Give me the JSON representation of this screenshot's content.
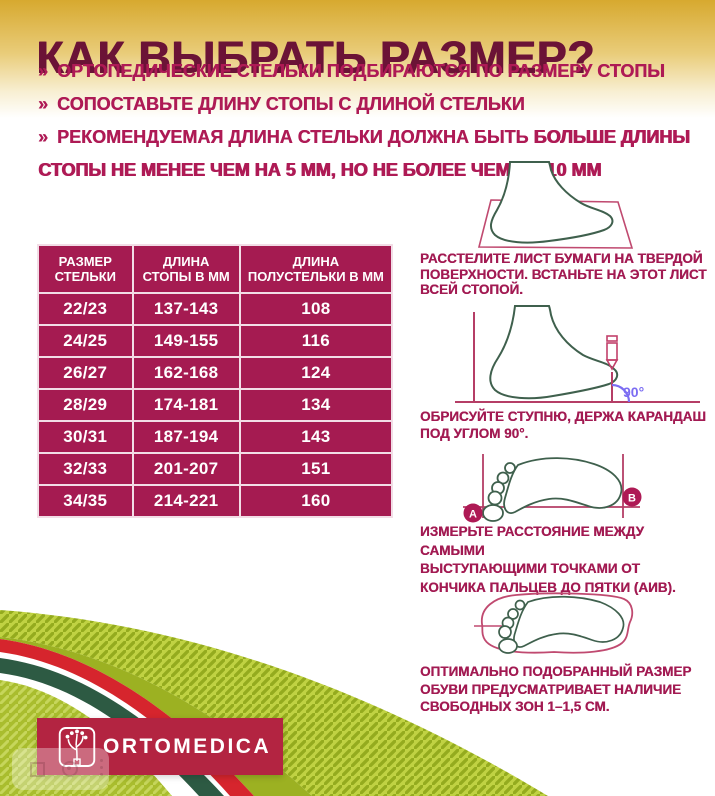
{
  "page": {
    "title": "КАК ВЫБРАТЬ РАЗМЕР?"
  },
  "bullets": [
    {
      "marker": "»",
      "text": "ОРТОПЕДИЧЕСКИЕ СТЕЛЬКИ ПОДБИРАЮТСЯ ПО РАЗМЕРУ СТОПЫ",
      "bold_text": ""
    },
    {
      "marker": "»",
      "text": "СОПОСТАВЬТЕ ДЛИНУ СТОПЫ С ДЛИНОЙ СТЕЛЬКИ",
      "bold_text": ""
    },
    {
      "marker": "»",
      "text": "РЕКОМЕНДУЕМАЯ ДЛИНА СТЕЛЬКИ ДОЛЖНА БЫТЬ ",
      "bold_text": "БОЛЬШЕ ДЛИНЫ СТОПЫ НЕ МЕНЕЕ ЧЕМ НА 5 ММ, НО НЕ БОЛЕЕ ЧЕМ НА 10 ММ"
    }
  ],
  "size_table": {
    "headers": [
      "РАЗМЕР СТЕЛЬКИ",
      "ДЛИНА СТОПЫ В ММ",
      "ДЛИНА ПОЛУСТЕЛЬКИ В ММ"
    ],
    "rows": [
      [
        "22/23",
        "137-143",
        "108"
      ],
      [
        "24/25",
        "149-155",
        "116"
      ],
      [
        "26/27",
        "162-168",
        "124"
      ],
      [
        "28/29",
        "174-181",
        "134"
      ],
      [
        "30/31",
        "187-194",
        "143"
      ],
      [
        "32/33",
        "201-207",
        "151"
      ],
      [
        "34/35",
        "214-221",
        "160"
      ]
    ]
  },
  "steps": [
    {
      "caption_lines": [
        "РАССТЕЛИТЕ ЛИСТ БУМАГИ НА ТВЕРДОЙ",
        "ПОВЕРХНОСТИ. ВСТАНЬТЕ НА ЭТОТ ЛИСТ",
        "ВСЕЙ СТОПОЙ."
      ]
    },
    {
      "caption_lines": [
        "ОБРИСУЙТЕ СТУПНЮ, ДЕРЖА КАРАНДАШ",
        "ПОД УГЛОМ 90°."
      ],
      "angle_label": "90°"
    },
    {
      "caption_lines": [
        "ИЗМЕРЬТЕ РАССТОЯНИЕ МЕЖДУ САМЫМИ",
        "ВЫСТУПАЮЩИМИ ТОЧКАМИ ОТ",
        "КОНЧИКА ПАЛЬЦЕВ ДО ПЯТКИ (АИВ)."
      ],
      "point_a": "А",
      "point_b": "В"
    },
    {
      "caption_lines": [
        "ОПТИМАЛЬНО ПОДОБРАННЫЙ РАЗМЕР",
        "ОБУВИ ПРЕДУСМАТРИВАЕТ НАЛИЧИЕ",
        "СВОБОДНЫХ ЗОН 1–1,5 СМ."
      ]
    }
  ],
  "logo": {
    "brand": "ORTOMEDICA"
  },
  "colors": {
    "title_maroon": "#6b1336",
    "accent_crimson": "#ae1a55",
    "table_bg": "#a51b51",
    "logo_red": "#b32441",
    "wave_red": "#d6252d",
    "wave_dark_green": "#2d5a43",
    "wave_leaf_green": "#c0d243",
    "foot_green": "#3f604d",
    "angle_purple": "#7b6cf2"
  }
}
